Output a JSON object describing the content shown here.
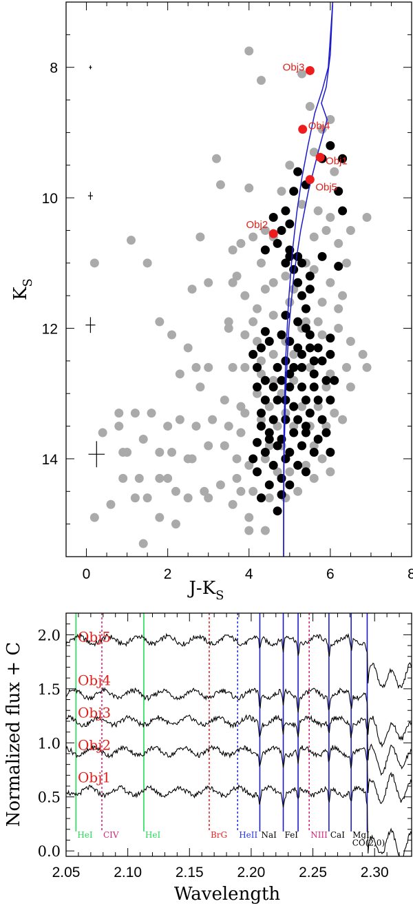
{
  "chart_data": [
    {
      "type": "scatter",
      "title": "",
      "xlabel": "J-K",
      "xlabel_sub": "S",
      "ylabel": "K",
      "ylabel_sub": "S",
      "xlim": [
        -0.5,
        8
      ],
      "ylim": [
        15.5,
        7
      ],
      "x_ticks": [
        "0",
        "2",
        "4",
        "6",
        "8"
      ],
      "y_ticks": [
        "8",
        "10",
        "12",
        "14"
      ],
      "colors": {
        "field": "#aaaaaa",
        "members": "#000000",
        "targets": "#ee1c1c",
        "isochrone": "#1a1acc"
      },
      "error_bars": [
        {
          "x": 0.1,
          "y": 8.0,
          "dx": 0.03,
          "dy": 0.03
        },
        {
          "x": 0.1,
          "y": 9.97,
          "dx": 0.06,
          "dy": 0.06
        },
        {
          "x": 0.1,
          "y": 11.95,
          "dx": 0.12,
          "dy": 0.12
        },
        {
          "x": 0.25,
          "y": 13.93,
          "dx": 0.2,
          "dy": 0.2
        }
      ],
      "isochrones": [
        {
          "x": [
            4.85,
            4.85,
            4.86,
            4.9,
            4.97,
            5.07,
            5.18,
            5.3,
            5.45,
            5.62,
            5.8,
            5.95,
            6.06
          ],
          "y": [
            15.5,
            14.5,
            13.5,
            12.5,
            11.6,
            10.8,
            10.2,
            9.7,
            9.2,
            8.7,
            8.35,
            8.0,
            7.0
          ]
        },
        {
          "x": [
            4.85,
            4.86,
            4.9,
            4.98,
            5.1,
            5.27,
            5.46,
            5.7,
            5.92,
            5.78,
            5.9,
            6.0,
            6.06
          ],
          "y": [
            15.5,
            14.0,
            13.0,
            12.0,
            11.2,
            10.5,
            9.9,
            9.3,
            8.8,
            8.55,
            8.3,
            7.8,
            7.0
          ]
        }
      ],
      "targets": [
        {
          "name": "Obj3",
          "x": 5.5,
          "y": 8.05
        },
        {
          "name": "Obj4",
          "x": 5.32,
          "y": 8.95
        },
        {
          "name": "Obj1",
          "x": 5.75,
          "y": 9.38
        },
        {
          "name": "Obj5",
          "x": 5.5,
          "y": 9.72
        },
        {
          "name": "Obj2",
          "x": 4.6,
          "y": 10.55
        }
      ],
      "members": [
        [
          5.2,
          9.6
        ],
        [
          5.4,
          9.8
        ],
        [
          5.8,
          9.4
        ],
        [
          6.0,
          9.2
        ],
        [
          6.3,
          9.4
        ],
        [
          6.2,
          9.9
        ],
        [
          6.3,
          10.2
        ],
        [
          5.1,
          9.9
        ],
        [
          4.9,
          10.2
        ],
        [
          5.0,
          10.4
        ],
        [
          4.6,
          10.3
        ],
        [
          4.8,
          10.5
        ],
        [
          5.0,
          10.8
        ],
        [
          5.2,
          10.9
        ],
        [
          4.7,
          10.7
        ],
        [
          4.4,
          10.8
        ],
        [
          4.9,
          11.0
        ],
        [
          5.1,
          11.1
        ],
        [
          5.3,
          11.0
        ],
        [
          5.5,
          11.2
        ],
        [
          6.2,
          11.05
        ],
        [
          5.2,
          11.3
        ],
        [
          5.3,
          11.5
        ],
        [
          5.4,
          11.7
        ],
        [
          4.9,
          11.8
        ],
        [
          5.2,
          11.9
        ],
        [
          5.4,
          12.0
        ],
        [
          4.8,
          12.1
        ],
        [
          5.0,
          12.2
        ],
        [
          5.2,
          12.3
        ],
        [
          5.5,
          12.3
        ],
        [
          5.7,
          12.3
        ],
        [
          4.5,
          12.2
        ],
        [
          4.3,
          12.3
        ],
        [
          4.9,
          12.5
        ],
        [
          5.1,
          12.6
        ],
        [
          5.3,
          12.6
        ],
        [
          5.6,
          12.5
        ],
        [
          5.8,
          12.5
        ],
        [
          6.0,
          12.4
        ],
        [
          4.7,
          12.6
        ],
        [
          4.2,
          12.6
        ],
        [
          4.4,
          12.8
        ],
        [
          4.8,
          12.8
        ],
        [
          5.0,
          12.9
        ],
        [
          5.3,
          12.9
        ],
        [
          5.6,
          12.9
        ],
        [
          5.9,
          12.8
        ],
        [
          6.1,
          12.8
        ],
        [
          4.4,
          13.1
        ],
        [
          4.7,
          13.1
        ],
        [
          5.1,
          13.2
        ],
        [
          5.4,
          13.1
        ],
        [
          5.7,
          13.1
        ],
        [
          6.0,
          13.1
        ],
        [
          4.3,
          13.3
        ],
        [
          4.6,
          13.4
        ],
        [
          4.9,
          13.4
        ],
        [
          5.2,
          13.4
        ],
        [
          5.5,
          13.3
        ],
        [
          5.8,
          13.4
        ],
        [
          4.5,
          13.6
        ],
        [
          4.8,
          13.7
        ],
        [
          5.1,
          13.6
        ],
        [
          5.4,
          13.6
        ],
        [
          5.7,
          13.7
        ],
        [
          4.4,
          13.9
        ],
        [
          4.7,
          13.8
        ],
        [
          5.0,
          13.9
        ],
        [
          5.3,
          13.8
        ],
        [
          4.6,
          14.1
        ],
        [
          4.9,
          14.0
        ],
        [
          5.2,
          14.1
        ],
        [
          4.8,
          14.3
        ],
        [
          5.0,
          14.4
        ],
        [
          4.5,
          14.4
        ],
        [
          4.3,
          14.6
        ],
        [
          4.7,
          14.8
        ],
        [
          4.2,
          14.2
        ],
        [
          5.4,
          14.2
        ],
        [
          5.9,
          13.6
        ],
        [
          6.0,
          13.9
        ],
        [
          5.5,
          12.1
        ],
        [
          5.6,
          12.7
        ],
        [
          4.2,
          12.9
        ],
        [
          4.5,
          13.7
        ],
        [
          4.1,
          14.0
        ],
        [
          4.3,
          13.5
        ],
        [
          4.9,
          13.1
        ],
        [
          5.3,
          12.4
        ],
        [
          5.0,
          12.7
        ],
        [
          5.4,
          13.5
        ],
        [
          4.6,
          12.9
        ],
        [
          5.8,
          10.9
        ],
        [
          5.5,
          11.4
        ],
        [
          5.0,
          10.9
        ],
        [
          4.4,
          12.05
        ],
        [
          6.0,
          12.15
        ],
        [
          5.6,
          13.9
        ],
        [
          4.8,
          14.55
        ],
        [
          4.2,
          13.75
        ],
        [
          4.1,
          12.4
        ]
      ],
      "field": [
        [
          4.0,
          7.75
        ],
        [
          4.3,
          8.2
        ],
        [
          5.3,
          8.1
        ],
        [
          5.5,
          8.6
        ],
        [
          5.8,
          8.95
        ],
        [
          6.0,
          8.8
        ],
        [
          5.6,
          9.3
        ],
        [
          6.1,
          9.6
        ],
        [
          5.0,
          9.5
        ],
        [
          3.2,
          9.4
        ],
        [
          3.3,
          9.8
        ],
        [
          4.0,
          9.85
        ],
        [
          4.8,
          9.9
        ],
        [
          5.3,
          10.1
        ],
        [
          5.7,
          10.2
        ],
        [
          6.0,
          10.3
        ],
        [
          6.5,
          10.5
        ],
        [
          6.9,
          10.3
        ],
        [
          5.9,
          10.5
        ],
        [
          6.2,
          10.7
        ],
        [
          5.6,
          10.6
        ],
        [
          4.6,
          10.6
        ],
        [
          4.4,
          10.5
        ],
        [
          4.1,
          10.6
        ],
        [
          3.8,
          10.7
        ],
        [
          3.6,
          10.8
        ],
        [
          2.8,
          10.6
        ],
        [
          3.0,
          11.3
        ],
        [
          3.7,
          11.2
        ],
        [
          4.3,
          11.0
        ],
        [
          4.6,
          11.3
        ],
        [
          5.1,
          11.4
        ],
        [
          5.6,
          11.1
        ],
        [
          6.0,
          11.3
        ],
        [
          6.4,
          11.0
        ],
        [
          6.3,
          11.5
        ],
        [
          5.8,
          11.6
        ],
        [
          5.4,
          11.9
        ],
        [
          5.0,
          11.6
        ],
        [
          4.6,
          11.8
        ],
        [
          4.2,
          11.7
        ],
        [
          3.9,
          11.5
        ],
        [
          3.6,
          11.3
        ],
        [
          2.6,
          11.4
        ],
        [
          1.1,
          10.65
        ],
        [
          0.2,
          11.0
        ],
        [
          1.5,
          11.0
        ],
        [
          1.8,
          11.9
        ],
        [
          2.1,
          12.1
        ],
        [
          2.5,
          12.3
        ],
        [
          3.5,
          12.0
        ],
        [
          3.9,
          12.1
        ],
        [
          4.2,
          12.2
        ],
        [
          4.6,
          12.4
        ],
        [
          4.9,
          12.2
        ],
        [
          5.3,
          12.0
        ],
        [
          5.8,
          12.1
        ],
        [
          6.2,
          12.0
        ],
        [
          6.5,
          12.2
        ],
        [
          6.8,
          12.4
        ],
        [
          6.9,
          12.6
        ],
        [
          6.4,
          12.6
        ],
        [
          6.0,
          12.7
        ],
        [
          5.5,
          12.6
        ],
        [
          5.1,
          12.8
        ],
        [
          4.6,
          12.8
        ],
        [
          4.3,
          12.7
        ],
        [
          3.9,
          12.6
        ],
        [
          3.6,
          12.6
        ],
        [
          3.0,
          12.6
        ],
        [
          2.7,
          12.6
        ],
        [
          2.3,
          12.7
        ],
        [
          2.8,
          12.9
        ],
        [
          3.4,
          13.1
        ],
        [
          3.8,
          13.2
        ],
        [
          4.2,
          13.0
        ],
        [
          4.5,
          13.2
        ],
        [
          4.9,
          13.3
        ],
        [
          5.3,
          13.2
        ],
        [
          5.7,
          13.2
        ],
        [
          6.1,
          13.3
        ],
        [
          6.3,
          13.4
        ],
        [
          5.9,
          13.5
        ],
        [
          5.5,
          13.5
        ],
        [
          5.1,
          13.5
        ],
        [
          4.7,
          13.5
        ],
        [
          4.3,
          13.4
        ],
        [
          3.9,
          13.3
        ],
        [
          3.5,
          13.5
        ],
        [
          3.1,
          13.4
        ],
        [
          2.7,
          13.5
        ],
        [
          2.3,
          13.4
        ],
        [
          2.0,
          13.5
        ],
        [
          1.6,
          13.3
        ],
        [
          1.2,
          13.3
        ],
        [
          0.8,
          13.3
        ],
        [
          0.8,
          13.5
        ],
        [
          1.0,
          13.9
        ],
        [
          1.4,
          13.7
        ],
        [
          1.8,
          13.9
        ],
        [
          2.1,
          13.9
        ],
        [
          2.5,
          14.0
        ],
        [
          3.0,
          13.8
        ],
        [
          3.4,
          13.8
        ],
        [
          3.7,
          14.0
        ],
        [
          4.0,
          14.1
        ],
        [
          4.4,
          14.0
        ],
        [
          4.7,
          14.2
        ],
        [
          5.0,
          14.2
        ],
        [
          5.4,
          14.1
        ],
        [
          5.8,
          14.0
        ],
        [
          6.0,
          14.2
        ],
        [
          5.6,
          14.3
        ],
        [
          5.2,
          14.5
        ],
        [
          4.9,
          14.6
        ],
        [
          4.5,
          14.6
        ],
        [
          4.1,
          14.5
        ],
        [
          3.7,
          14.3
        ],
        [
          3.3,
          14.4
        ],
        [
          2.9,
          14.5
        ],
        [
          2.5,
          14.6
        ],
        [
          2.2,
          14.5
        ],
        [
          1.8,
          14.3
        ],
        [
          1.3,
          14.3
        ],
        [
          0.9,
          14.3
        ],
        [
          0.6,
          14.7
        ],
        [
          0.2,
          14.9
        ],
        [
          1.2,
          14.6
        ],
        [
          1.5,
          14.6
        ],
        [
          1.8,
          14.9
        ],
        [
          2.2,
          15.0
        ],
        [
          3.0,
          14.6
        ],
        [
          3.6,
          14.7
        ],
        [
          4.0,
          15.1
        ],
        [
          4.4,
          15.1
        ],
        [
          4.0,
          14.9
        ],
        [
          1.4,
          15.3
        ],
        [
          4.5,
          13.8
        ],
        [
          3.5,
          11.9
        ],
        [
          5.4,
          11.0
        ],
        [
          4.9,
          11.2
        ],
        [
          5.1,
          12.4
        ],
        [
          4.3,
          12.5
        ],
        [
          3.8,
          13.6
        ],
        [
          4.8,
          13.8
        ],
        [
          5.3,
          13.8
        ],
        [
          5.9,
          12.9
        ],
        [
          6.5,
          12.9
        ],
        [
          4.1,
          11.9
        ],
        [
          5.7,
          11.9
        ],
        [
          6.2,
          11.7
        ],
        [
          4.4,
          11.4
        ],
        [
          4.8,
          13.0
        ],
        [
          5.6,
          13.8
        ],
        [
          4.2,
          14.2
        ],
        [
          3.8,
          14.5
        ],
        [
          2.0,
          14.3
        ],
        [
          2.6,
          14.0
        ],
        [
          0.9,
          13.9
        ],
        [
          0.4,
          13.6
        ]
      ]
    },
    {
      "type": "line",
      "title": "",
      "xlabel": "Wavelength",
      "ylabel": "Normalized flux + C",
      "xlim": [
        2.05,
        2.33
      ],
      "ylim": [
        -0.05,
        2.2
      ],
      "x_ticks": [
        "2.05",
        "2.10",
        "2.15",
        "2.20",
        "2.25",
        "2.30"
      ],
      "y_ticks": [
        "0.0",
        "0.5",
        "1.0",
        "1.5",
        "2.0"
      ],
      "series": [
        {
          "name": "Obj5",
          "offset": 1.95
        },
        {
          "name": "Obj4",
          "offset": 1.45
        },
        {
          "name": "Obj3",
          "offset": 1.2
        },
        {
          "name": "Obj2",
          "offset": 0.92
        },
        {
          "name": "Obj1",
          "offset": 0.55
        }
      ],
      "spectral_lines": [
        {
          "label": "HeI",
          "wave": 2.058,
          "style": "solid",
          "color": "#22dd55"
        },
        {
          "label": "CIV",
          "wave": 2.079,
          "style": "dotted",
          "color": "#dd2277"
        },
        {
          "label": "HeI",
          "wave": 2.113,
          "style": "solid",
          "color": "#22dd55"
        },
        {
          "label": "BrG",
          "wave": 2.166,
          "style": "dotted",
          "color": "#ee2222"
        },
        {
          "label": "HeII",
          "wave": 2.189,
          "style": "dotted",
          "color": "#2233ee"
        },
        {
          "label": "NaI",
          "wave": 2.207,
          "style": "solid",
          "color": "#1a1acc",
          "text_color": "#000000"
        },
        {
          "label": "FeI",
          "wave": 2.226,
          "style": "solid",
          "color": "#1a1acc",
          "text_color": "#000000"
        },
        {
          "label": "",
          "wave": 2.238,
          "style": "solid",
          "color": "#1a1acc"
        },
        {
          "label": "NIII",
          "wave": 2.247,
          "style": "dotted",
          "color": "#dd2277"
        },
        {
          "label": "CaI",
          "wave": 2.263,
          "style": "solid",
          "color": "#1a1acc",
          "text_color": "#000000"
        },
        {
          "label": "MgI",
          "wave": 2.281,
          "style": "solid",
          "color": "#1a1acc",
          "text_color": "#000000"
        },
        {
          "label": "CO(2,0)",
          "wave": 2.294,
          "style": "solid",
          "color": "#1a1acc",
          "text_color": "#000000"
        }
      ]
    }
  ]
}
